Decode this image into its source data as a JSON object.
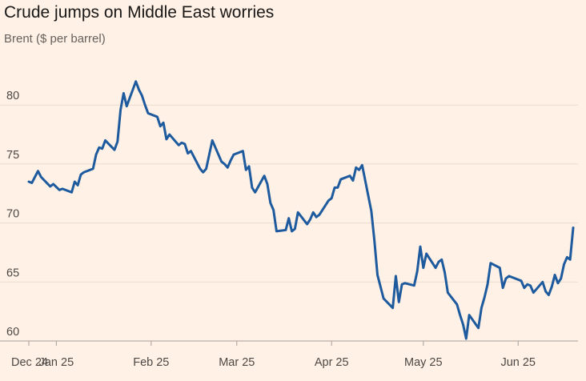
{
  "title": "Crude jumps on Middle East worries",
  "subtitle": "Brent ($ per barrel)",
  "colors": {
    "line": "#1D5A9E",
    "background": "#FFF1E5",
    "grid": "#EADBCF"
  },
  "chart_data": {
    "type": "line",
    "title": "Crude jumps on Middle East worries",
    "ylabel": "Brent ($ per barrel)",
    "ylim": [
      60,
      85
    ],
    "xlim": [
      "2024-12-23",
      "2025-06-19"
    ],
    "grid": true,
    "y_ticks": [
      60,
      65,
      70,
      75,
      80
    ],
    "x_ticks": [
      {
        "label": "Dec 24",
        "date": "2024-12-23"
      },
      {
        "label": "Jan 25",
        "date": "2025-01-01"
      },
      {
        "label": "Feb 25",
        "date": "2025-02-01"
      },
      {
        "label": "Mar 25",
        "date": "2025-03-01"
      },
      {
        "label": "Apr 25",
        "date": "2025-04-01"
      },
      {
        "label": "May 25",
        "date": "2025-05-01"
      },
      {
        "label": "Jun 25",
        "date": "2025-06-01"
      }
    ],
    "series": [
      {
        "values": [
          [
            "2024-12-23",
            73.5
          ],
          [
            "2024-12-24",
            73.4
          ],
          [
            "2024-12-26",
            74.4
          ],
          [
            "2024-12-27",
            73.9
          ],
          [
            "2024-12-30",
            73.1
          ],
          [
            "2024-12-31",
            73.3
          ],
          [
            "2025-01-02",
            72.8
          ],
          [
            "2025-01-03",
            72.9
          ],
          [
            "2025-01-06",
            72.6
          ],
          [
            "2025-01-07",
            73.5
          ],
          [
            "2025-01-08",
            73.2
          ],
          [
            "2025-01-09",
            74.1
          ],
          [
            "2025-01-10",
            74.3
          ],
          [
            "2025-01-13",
            74.6
          ],
          [
            "2025-01-14",
            75.8
          ],
          [
            "2025-01-15",
            76.4
          ],
          [
            "2025-01-16",
            76.3
          ],
          [
            "2025-01-17",
            77.0
          ],
          [
            "2025-01-20",
            76.2
          ],
          [
            "2025-01-21",
            76.9
          ],
          [
            "2025-01-22",
            79.6
          ],
          [
            "2025-01-23",
            81.0
          ],
          [
            "2025-01-24",
            79.9
          ],
          [
            "2025-01-27",
            82.0
          ],
          [
            "2025-01-28",
            81.3
          ],
          [
            "2025-01-29",
            80.8
          ],
          [
            "2025-01-30",
            80.0
          ],
          [
            "2025-01-31",
            79.3
          ],
          [
            "2025-02-03",
            79.0
          ],
          [
            "2025-02-04",
            78.2
          ],
          [
            "2025-02-05",
            78.5
          ],
          [
            "2025-02-06",
            77.1
          ],
          [
            "2025-02-07",
            77.5
          ],
          [
            "2025-02-10",
            76.6
          ],
          [
            "2025-02-11",
            76.8
          ],
          [
            "2025-02-12",
            76.7
          ],
          [
            "2025-02-13",
            75.9
          ],
          [
            "2025-02-14",
            76.1
          ],
          [
            "2025-02-17",
            74.6
          ],
          [
            "2025-02-18",
            74.3
          ],
          [
            "2025-02-19",
            74.6
          ],
          [
            "2025-02-20",
            75.8
          ],
          [
            "2025-02-21",
            77.0
          ],
          [
            "2025-02-24",
            75.2
          ],
          [
            "2025-02-25",
            75.0
          ],
          [
            "2025-02-26",
            74.7
          ],
          [
            "2025-02-27",
            75.3
          ],
          [
            "2025-02-28",
            75.8
          ],
          [
            "2025-03-03",
            76.1
          ],
          [
            "2025-03-04",
            74.5
          ],
          [
            "2025-03-05",
            74.8
          ],
          [
            "2025-03-06",
            73.0
          ],
          [
            "2025-03-07",
            72.6
          ],
          [
            "2025-03-10",
            74.0
          ],
          [
            "2025-03-11",
            73.3
          ],
          [
            "2025-03-12",
            71.7
          ],
          [
            "2025-03-13",
            71.1
          ],
          [
            "2025-03-14",
            69.3
          ],
          [
            "2025-03-17",
            69.4
          ],
          [
            "2025-03-18",
            70.4
          ],
          [
            "2025-03-19",
            69.3
          ],
          [
            "2025-03-20",
            69.5
          ],
          [
            "2025-03-21",
            70.9
          ],
          [
            "2025-03-24",
            69.9
          ],
          [
            "2025-03-25",
            70.3
          ],
          [
            "2025-03-26",
            70.9
          ],
          [
            "2025-03-27",
            70.5
          ],
          [
            "2025-03-28",
            70.7
          ],
          [
            "2025-03-31",
            71.9
          ],
          [
            "2025-04-01",
            72.1
          ],
          [
            "2025-04-02",
            73.0
          ],
          [
            "2025-04-03",
            73.0
          ],
          [
            "2025-04-04",
            73.7
          ],
          [
            "2025-04-07",
            74.0
          ],
          [
            "2025-04-08",
            73.6
          ],
          [
            "2025-04-09",
            74.7
          ],
          [
            "2025-04-10",
            74.5
          ],
          [
            "2025-04-11",
            74.9
          ],
          [
            "2025-04-14",
            71.0
          ],
          [
            "2025-04-15",
            68.5
          ],
          [
            "2025-04-16",
            65.6
          ],
          [
            "2025-04-17",
            64.6
          ],
          [
            "2025-04-18",
            63.6
          ],
          [
            "2025-04-21",
            62.8
          ],
          [
            "2025-04-22",
            65.5
          ],
          [
            "2025-04-23",
            63.3
          ],
          [
            "2025-04-24",
            64.8
          ],
          [
            "2025-04-25",
            64.9
          ],
          [
            "2025-04-28",
            64.7
          ],
          [
            "2025-04-29",
            65.9
          ],
          [
            "2025-04-30",
            68.0
          ],
          [
            "2025-05-01",
            66.2
          ],
          [
            "2025-05-02",
            67.4
          ],
          [
            "2025-05-05",
            66.2
          ],
          [
            "2025-05-06",
            66.7
          ],
          [
            "2025-05-07",
            66.9
          ],
          [
            "2025-05-08",
            65.8
          ],
          [
            "2025-05-09",
            64.1
          ],
          [
            "2025-05-12",
            63.1
          ],
          [
            "2025-05-13",
            62.2
          ],
          [
            "2025-05-14",
            61.4
          ],
          [
            "2025-05-15",
            60.2
          ],
          [
            "2025-05-16",
            62.2
          ],
          [
            "2025-05-19",
            61.1
          ],
          [
            "2025-05-20",
            62.8
          ],
          [
            "2025-05-21",
            63.7
          ],
          [
            "2025-05-22",
            64.8
          ],
          [
            "2025-05-23",
            66.6
          ],
          [
            "2025-05-26",
            66.2
          ],
          [
            "2025-05-27",
            64.5
          ],
          [
            "2025-05-28",
            65.3
          ],
          [
            "2025-05-29",
            65.5
          ],
          [
            "2025-05-30",
            65.4
          ],
          [
            "2025-06-02",
            65.1
          ],
          [
            "2025-06-03",
            64.5
          ],
          [
            "2025-06-04",
            64.8
          ],
          [
            "2025-06-05",
            64.7
          ],
          [
            "2025-06-06",
            64.1
          ],
          [
            "2025-06-09",
            65.0
          ],
          [
            "2025-06-10",
            64.2
          ],
          [
            "2025-06-11",
            63.9
          ],
          [
            "2025-06-12",
            64.6
          ],
          [
            "2025-06-13",
            65.6
          ],
          [
            "2025-06-14",
            64.9
          ],
          [
            "2025-06-15",
            65.3
          ],
          [
            "2025-06-16",
            66.5
          ],
          [
            "2025-06-17",
            67.1
          ],
          [
            "2025-06-18",
            66.9
          ],
          [
            "2025-06-19",
            69.6
          ]
        ]
      }
    ]
  }
}
